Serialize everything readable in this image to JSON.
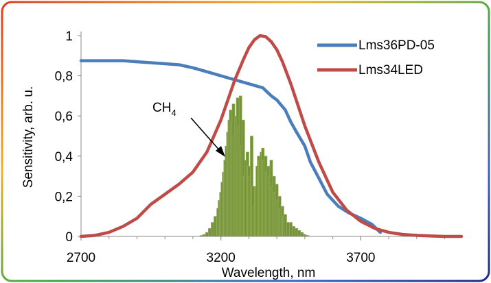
{
  "chart_data": {
    "type": "line",
    "xlabel": "Wavelength, nm",
    "ylabel": "Sensitivity, arb. u.",
    "xlim": [
      2700,
      4060
    ],
    "ylim": [
      0,
      1
    ],
    "x_ticks": [
      2700,
      3200,
      3700
    ],
    "x_tick_labels": [
      "2700",
      "3200",
      "3700"
    ],
    "y_ticks": [
      0,
      0.2,
      0.4,
      0.6,
      0.8,
      1
    ],
    "y_tick_labels": [
      "0",
      "0,2",
      "0,4",
      "0,6",
      "0,8",
      "1"
    ],
    "grid": false,
    "legend_position": "top-right",
    "series": [
      {
        "name": "Lms36PD-05",
        "color": "#4a7ebb",
        "x": [
          2700,
          2800,
          2850,
          2900,
          3000,
          3050,
          3100,
          3150,
          3200,
          3250,
          3300,
          3350,
          3380,
          3400,
          3430,
          3450,
          3470,
          3500,
          3520,
          3550,
          3580,
          3620,
          3660,
          3700,
          3740,
          3770
        ],
        "y": [
          0.875,
          0.875,
          0.875,
          0.87,
          0.86,
          0.855,
          0.84,
          0.82,
          0.8,
          0.78,
          0.76,
          0.74,
          0.7,
          0.68,
          0.63,
          0.57,
          0.52,
          0.45,
          0.37,
          0.29,
          0.21,
          0.15,
          0.115,
          0.09,
          0.06,
          0.02
        ]
      },
      {
        "name": "Lms34LED",
        "color": "#be4b48",
        "x": [
          2700,
          2750,
          2800,
          2850,
          2900,
          2950,
          3000,
          3050,
          3100,
          3150,
          3200,
          3250,
          3280,
          3300,
          3320,
          3340,
          3360,
          3380,
          3400,
          3420,
          3450,
          3500,
          3550,
          3600,
          3650,
          3700,
          3750,
          3800,
          3850,
          3900,
          3950,
          4000,
          4060
        ],
        "y": [
          0.0,
          0.005,
          0.02,
          0.05,
          0.09,
          0.16,
          0.21,
          0.26,
          0.32,
          0.42,
          0.58,
          0.78,
          0.88,
          0.94,
          0.98,
          1.0,
          0.995,
          0.97,
          0.93,
          0.87,
          0.76,
          0.55,
          0.37,
          0.22,
          0.13,
          0.075,
          0.04,
          0.02,
          0.01,
          0.005,
          0.002,
          0.0,
          0.0
        ]
      }
    ],
    "ch4_spectrum": {
      "color": "#76923c",
      "x": [
        3130,
        3140,
        3150,
        3160,
        3170,
        3180,
        3190,
        3195,
        3200,
        3205,
        3210,
        3215,
        3220,
        3225,
        3230,
        3235,
        3240,
        3245,
        3250,
        3255,
        3260,
        3265,
        3270,
        3275,
        3280,
        3285,
        3290,
        3295,
        3300,
        3305,
        3310,
        3315,
        3320,
        3325,
        3330,
        3335,
        3340,
        3345,
        3350,
        3355,
        3360,
        3365,
        3370,
        3375,
        3380,
        3385,
        3390,
        3395,
        3400,
        3405,
        3410,
        3415,
        3420,
        3425,
        3430,
        3440,
        3450,
        3460,
        3470,
        3480,
        3490,
        3500,
        3510
      ],
      "y": [
        0.005,
        0.01,
        0.02,
        0.04,
        0.07,
        0.1,
        0.14,
        0.18,
        0.22,
        0.27,
        0.32,
        0.38,
        0.45,
        0.52,
        0.58,
        0.63,
        0.57,
        0.66,
        0.5,
        0.6,
        0.69,
        0.55,
        0.7,
        0.45,
        0.58,
        0.3,
        0.38,
        0.42,
        0.35,
        0.3,
        0.5,
        0.25,
        0.15,
        0.25,
        0.35,
        0.4,
        0.38,
        0.42,
        0.44,
        0.38,
        0.4,
        0.32,
        0.35,
        0.3,
        0.38,
        0.25,
        0.3,
        0.22,
        0.26,
        0.18,
        0.2,
        0.14,
        0.15,
        0.1,
        0.11,
        0.07,
        0.07,
        0.05,
        0.04,
        0.03,
        0.02,
        0.01,
        0.005
      ]
    },
    "annotations": [
      {
        "label": "CH",
        "subscript": "4"
      }
    ]
  }
}
